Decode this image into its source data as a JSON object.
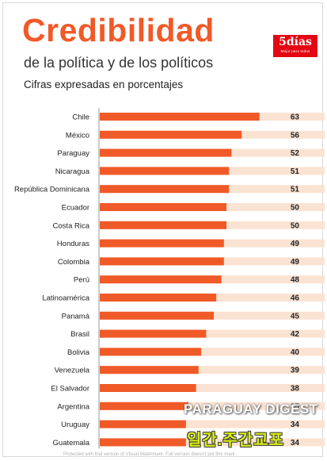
{
  "header": {
    "title": "Credibilidad",
    "subtitle": "de la política y de los políticos",
    "note": "Cifras expresadas en porcentajes",
    "logo_text": "5días",
    "logo_tagline": "Mejor para todos"
  },
  "watermarks": {
    "line1": "PARAGUAY DIGEST",
    "line2": "일간.주간교포",
    "line3": "Protected with trial version of Visual Watermark. Full version doesn't put this mark."
  },
  "colors": {
    "accent": "#f05a28",
    "track": "#fbe3d3",
    "logo_bg": "#e30613"
  },
  "chart_data": {
    "type": "bar",
    "orientation": "horizontal",
    "categories": [
      "Chile",
      "México",
      "Paraguay",
      "Nicaragua",
      "República Dominicana",
      "Ecuador",
      "Costa Rica",
      "Honduras",
      "Colombia",
      "Perú",
      "Latinoamérica",
      "Panamá",
      "Brasil",
      "Bolivia",
      "Venezuela",
      "El Salvador",
      "Argentina",
      "Uruguay",
      "Guatemala"
    ],
    "values": [
      63,
      56,
      52,
      51,
      51,
      50,
      50,
      49,
      49,
      48,
      46,
      45,
      42,
      40,
      39,
      38,
      35,
      34,
      34
    ],
    "value_labels": [
      "63",
      "56",
      "52",
      "51",
      "51",
      "50",
      "50",
      "49",
      "49",
      "48",
      "46",
      "45",
      "42",
      "40",
      "39",
      "38",
      "35",
      "34",
      "34"
    ],
    "title": "Credibilidad",
    "xlim": [
      0,
      100
    ],
    "grid": false,
    "legend": "none"
  }
}
